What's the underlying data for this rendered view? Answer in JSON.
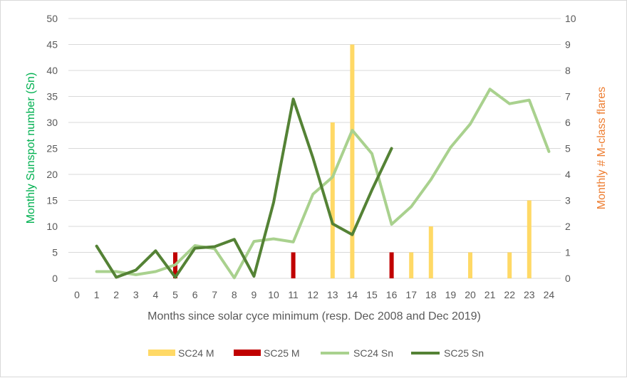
{
  "chart_data": {
    "type": "bar+line",
    "title": "",
    "xlabel": "Months since solar cyce minimum (resp. Dec 2008 and Dec 2019)",
    "ylabel_left": "Monthly Sunspot number (Sn)",
    "ylabel_right": "Monthly # M-class flares",
    "x_ticks": [
      "0",
      "1",
      "2",
      "3",
      "4",
      "5",
      "6",
      "7",
      "8",
      "9",
      "10",
      "11",
      "12",
      "13",
      "14",
      "15",
      "16",
      "17",
      "18",
      "19",
      "20",
      "21",
      "22",
      "23",
      "24"
    ],
    "y_left_ticks": [
      "0",
      "5",
      "10",
      "15",
      "20",
      "25",
      "30",
      "35",
      "40",
      "45",
      "50"
    ],
    "y_right_ticks": [
      "0",
      "1",
      "2",
      "3",
      "4",
      "5",
      "6",
      "7",
      "8",
      "9",
      "10"
    ],
    "ylim_left": [
      0,
      50
    ],
    "ylim_right": [
      0,
      10
    ],
    "xlim": [
      0,
      24
    ],
    "grid": "horizontal",
    "legend_position": "bottom",
    "series": [
      {
        "name": "SC24 M",
        "kind": "bar",
        "axis": "right",
        "color": "#ffd966",
        "points": [
          [
            13,
            6
          ],
          [
            14,
            9
          ],
          [
            17,
            1
          ],
          [
            18,
            2
          ],
          [
            20,
            1
          ],
          [
            22,
            1
          ],
          [
            23,
            3
          ]
        ]
      },
      {
        "name": "SC25 M",
        "kind": "bar",
        "axis": "right",
        "color": "#c00000",
        "points": [
          [
            5,
            1
          ],
          [
            11,
            1
          ],
          [
            16,
            1
          ]
        ]
      },
      {
        "name": "SC24 Sn",
        "kind": "line",
        "axis": "left",
        "color": "#a9d18e",
        "x": [
          1,
          2,
          3,
          4,
          5,
          6,
          7,
          8,
          9,
          10,
          11,
          12,
          13,
          14,
          15,
          16,
          17,
          18,
          19,
          20,
          21,
          22,
          23,
          24
        ],
        "y": [
          1.3,
          1.3,
          0.7,
          1.3,
          2.6,
          6.3,
          5.7,
          0.1,
          7.1,
          7.6,
          7.0,
          16.2,
          19.5,
          28.5,
          24.0,
          10.4,
          13.8,
          19.0,
          25.2,
          29.7,
          36.4,
          33.6,
          34.3,
          24.4
        ]
      },
      {
        "name": "SC25 Sn",
        "kind": "line",
        "axis": "left",
        "color": "#548235",
        "x": [
          1,
          2,
          3,
          4,
          5,
          6,
          7,
          8,
          9,
          10,
          11,
          12,
          13,
          14,
          15,
          16
        ],
        "y": [
          6.2,
          0.2,
          1.6,
          5.3,
          0.2,
          5.8,
          6.1,
          7.5,
          0.4,
          14.6,
          34.5,
          23.2,
          10.5,
          8.4,
          17.0,
          25.0
        ]
      }
    ]
  },
  "colors": {
    "left_title": "#00b050",
    "right_title": "#ed7d31",
    "gridline": "#d9d9d9",
    "tick_text": "#595959"
  }
}
